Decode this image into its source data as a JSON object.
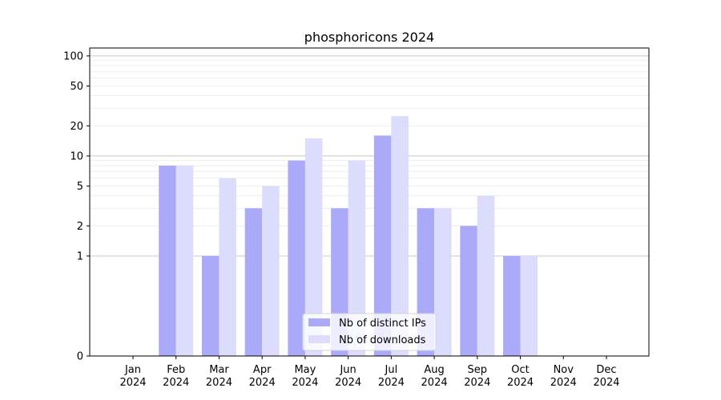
{
  "chart_data": {
    "type": "bar",
    "title": "phosphoricons 2024",
    "xlabel": "",
    "ylabel": "",
    "yscale": "symlog",
    "ylim": [
      0,
      120
    ],
    "categories": [
      {
        "month": "Jan",
        "year": "2024"
      },
      {
        "month": "Feb",
        "year": "2024"
      },
      {
        "month": "Mar",
        "year": "2024"
      },
      {
        "month": "Apr",
        "year": "2024"
      },
      {
        "month": "May",
        "year": "2024"
      },
      {
        "month": "Jun",
        "year": "2024"
      },
      {
        "month": "Jul",
        "year": "2024"
      },
      {
        "month": "Aug",
        "year": "2024"
      },
      {
        "month": "Sep",
        "year": "2024"
      },
      {
        "month": "Oct",
        "year": "2024"
      },
      {
        "month": "Nov",
        "year": "2024"
      },
      {
        "month": "Dec",
        "year": "2024"
      }
    ],
    "yticks": [
      0,
      1,
      2,
      5,
      10,
      20,
      50,
      100
    ],
    "grid": true,
    "legend_position": "bottom-center",
    "series": [
      {
        "name": "Nb of distinct IPs",
        "color": "#aaaaf8",
        "values": [
          0,
          8,
          1,
          3,
          9,
          3,
          16,
          3,
          2,
          1,
          0,
          0
        ]
      },
      {
        "name": "Nb of downloads",
        "color": "#dcdcfc",
        "values": [
          0,
          8,
          6,
          5,
          15,
          9,
          25,
          3,
          4,
          1,
          0,
          0
        ]
      }
    ]
  }
}
